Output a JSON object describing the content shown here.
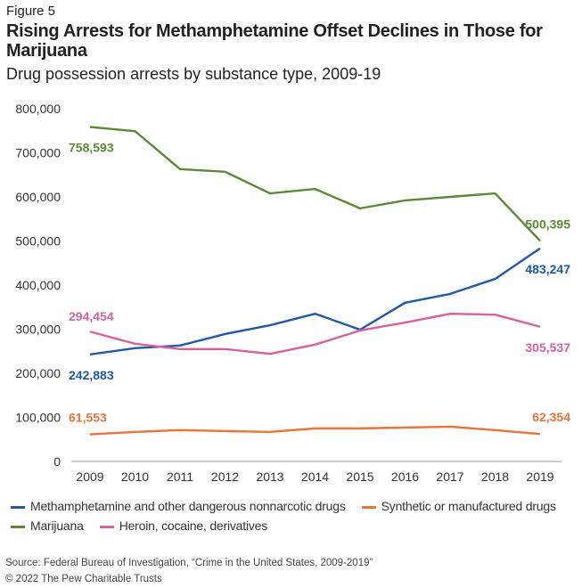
{
  "figure_label": "Figure 5",
  "title": "Rising Arrests for Methamphetamine Offset Declines in Those for Marijuana",
  "subtitle": "Drug possession arrests by substance type, 2009-19",
  "source": "Source: Federal Bureau of Investigation, “Crime in the United States, 2009-2019”",
  "copyright": "© 2022 The Pew Charitable Trusts",
  "chart_data": {
    "type": "line",
    "x": [
      2009,
      2010,
      2011,
      2012,
      2013,
      2014,
      2015,
      2016,
      2017,
      2018,
      2019
    ],
    "ylim": [
      0,
      800000
    ],
    "yticks": [
      "0",
      "100,000",
      "200,000",
      "300,000",
      "400,000",
      "500,000",
      "600,000",
      "700,000",
      "800,000"
    ],
    "ytick_values": [
      0,
      100000,
      200000,
      300000,
      400000,
      500000,
      600000,
      700000,
      800000
    ],
    "grid": false,
    "legend_position": "bottom",
    "series": [
      {
        "name": "Methamphetamine and other dangerous nonnarcotic drugs",
        "color": "#1f5aa6",
        "values": [
          242883,
          257000,
          263000,
          289000,
          309000,
          335000,
          299000,
          360000,
          380000,
          414000,
          483247
        ],
        "start_label": "242,883",
        "end_label": "483,247"
      },
      {
        "name": "Synthetic or manufactured drugs",
        "color": "#e8743b",
        "values": [
          61553,
          67000,
          71000,
          69000,
          67000,
          75000,
          75000,
          77000,
          79000,
          71000,
          62354
        ],
        "start_label": "61,553",
        "end_label": "62,354"
      },
      {
        "name": "Marijuana",
        "color": "#5a8a35",
        "values": [
          758593,
          749000,
          663000,
          657000,
          608000,
          618000,
          574000,
          592000,
          600000,
          608000,
          500395
        ],
        "start_label": "758,593",
        "end_label": "500,395"
      },
      {
        "name": "Heroin, cocaine, derivatives",
        "color": "#d6619e",
        "values": [
          294454,
          267000,
          255000,
          255000,
          244000,
          265000,
          297000,
          315000,
          335000,
          333000,
          305537
        ],
        "start_label": "294,454",
        "end_label": "305,537"
      }
    ]
  }
}
